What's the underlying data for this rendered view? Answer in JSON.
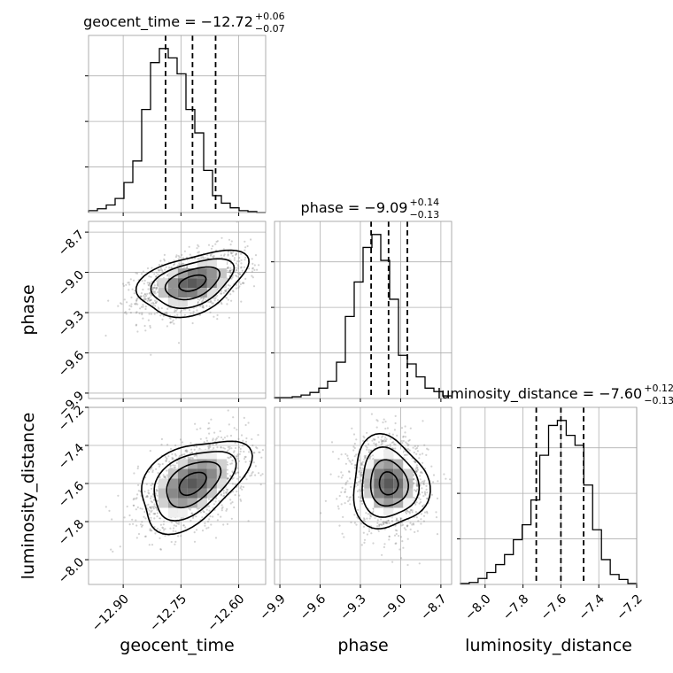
{
  "chart_data": {
    "type": "corner",
    "parameters": [
      "geocent_time",
      "phase",
      "luminosity_distance"
    ],
    "ranges": {
      "geocent_time": [
        -12.99,
        -12.53
      ],
      "phase": [
        -9.94,
        -8.62
      ],
      "luminosity_distance": [
        -8.13,
        -7.2
      ]
    },
    "ticks": {
      "geocent_time": [
        -12.9,
        -12.75,
        -12.6
      ],
      "phase": [
        -9.9,
        -9.6,
        -9.3,
        -9.0,
        -8.7
      ],
      "luminosity_distance": [
        -8.0,
        -7.8,
        -7.6,
        -7.4,
        -7.2
      ]
    },
    "tick_labels": {
      "geocent_time": [
        "−12.90",
        "−12.75",
        "−12.60"
      ],
      "phase": [
        "−9.9",
        "−9.6",
        "−9.3",
        "−9.0",
        "−8.7"
      ],
      "luminosity_distance": [
        "−8.0",
        "−7.8",
        "−7.6",
        "−7.4",
        "−7.2"
      ]
    },
    "titles": [
      {
        "param": "geocent_time",
        "main": "geocent_time = −12.72",
        "sup": "+0.06",
        "sub": "−0.07",
        "median": -12.72,
        "plus": 0.06,
        "minus": 0.07
      },
      {
        "param": "phase",
        "main": "phase = −9.09",
        "sup": "+0.14",
        "sub": "−0.13",
        "median": -9.09,
        "plus": 0.14,
        "minus": 0.13
      },
      {
        "param": "luminosity_distance",
        "main": "luminosity_distance = −7.60",
        "sup": "+0.12",
        "sub": "−0.13",
        "median": -7.6,
        "plus": 0.12,
        "minus": 0.13
      }
    ],
    "histograms": {
      "geocent_time": {
        "bin_edges": [
          -12.99,
          -12.967,
          -12.944,
          -12.921,
          -12.898,
          -12.875,
          -12.852,
          -12.829,
          -12.806,
          -12.783,
          -12.76,
          -12.737,
          -12.714,
          -12.691,
          -12.668,
          -12.645,
          -12.622,
          -12.599,
          -12.576,
          -12.553,
          -12.53
        ],
        "counts": [
          2,
          4,
          8,
          15,
          32,
          55,
          110,
          160,
          175,
          165,
          148,
          110,
          85,
          45,
          18,
          10,
          5,
          2,
          1,
          0
        ]
      },
      "phase": {
        "bin_edges": [
          -9.94,
          -9.874,
          -9.808,
          -9.742,
          -9.676,
          -9.61,
          -9.544,
          -9.478,
          -9.412,
          -9.346,
          -9.28,
          -9.214,
          -9.148,
          -9.082,
          -9.016,
          -8.95,
          -8.884,
          -8.818,
          -8.752,
          -8.686,
          -8.62
        ],
        "counts": [
          1,
          1,
          2,
          4,
          7,
          12,
          20,
          42,
          95,
          135,
          175,
          190,
          160,
          115,
          50,
          40,
          25,
          12,
          8,
          3
        ]
      },
      "luminosity_distance": {
        "bin_edges": [
          -8.13,
          -8.0835,
          -8.037,
          -7.9905,
          -7.944,
          -7.8975,
          -7.851,
          -7.8045,
          -7.758,
          -7.7115,
          -7.665,
          -7.6185,
          -7.572,
          -7.5255,
          -7.479,
          -7.4325,
          -7.386,
          -7.3395,
          -7.293,
          -7.2465,
          -7.2
        ],
        "counts": [
          1,
          2,
          6,
          12,
          20,
          30,
          45,
          60,
          85,
          130,
          160,
          165,
          150,
          140,
          100,
          55,
          25,
          10,
          5,
          1
        ]
      }
    },
    "quantiles": {
      "geocent_time": [
        -12.79,
        -12.72,
        -12.66
      ],
      "phase": [
        -9.22,
        -9.09,
        -8.95
      ],
      "luminosity_distance": [
        -7.73,
        -7.6,
        -7.48
      ]
    },
    "pairs": [
      {
        "x": "geocent_time",
        "y": "phase",
        "mean": [
          -12.72,
          -9.08
        ],
        "std": [
          0.07,
          0.12
        ],
        "corr": 0.42
      },
      {
        "x": "geocent_time",
        "y": "luminosity_distance",
        "mean": [
          -12.72,
          -7.6
        ],
        "std": [
          0.07,
          0.12
        ],
        "corr": 0.45
      },
      {
        "x": "phase",
        "y": "luminosity_distance",
        "mean": [
          -9.09,
          -7.6
        ],
        "std": [
          0.14,
          0.12
        ],
        "corr": -0.05
      }
    ],
    "contour_levels_sigma": [
      0.5,
      1.0,
      1.5,
      2.0
    ],
    "grid": true,
    "colors": {
      "hist_line": "#000000",
      "quantile_line": "#000000",
      "contour_line": "#000000",
      "grid": "#b0b0b0",
      "points": "#808080"
    }
  }
}
